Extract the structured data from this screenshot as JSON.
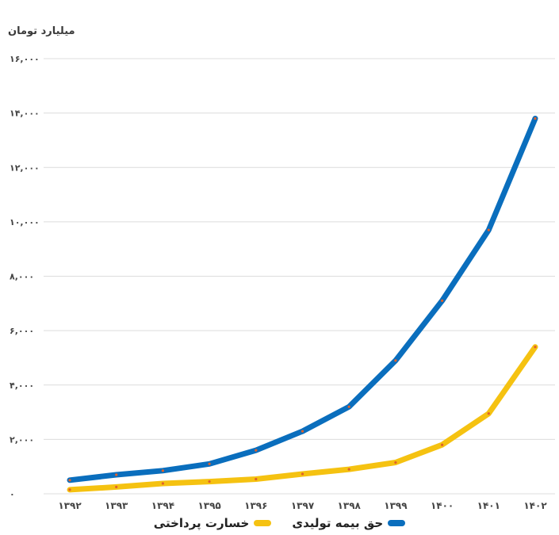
{
  "chart_data": {
    "type": "line",
    "unit_label": "میلیارد تومان",
    "categories": [
      "۱۳۹۲",
      "۱۳۹۳",
      "۱۳۹۴",
      "۱۳۹۵",
      "۱۳۹۶",
      "۱۳۹۷",
      "۱۳۹۸",
      "۱۳۹۹",
      "۱۴۰۰",
      "۱۴۰۱",
      "۱۴۰۲"
    ],
    "yticks": [
      0,
      2000,
      4000,
      6000,
      8000,
      10000,
      12000,
      14000,
      16000
    ],
    "ytick_labels": [
      "۰",
      "۲,۰۰۰",
      "۴,۰۰۰",
      "۶,۰۰۰",
      "۸,۰۰۰",
      "۱۰,۰۰۰",
      "۱۲,۰۰۰",
      "۱۴,۰۰۰",
      "۱۶,۰۰۰"
    ],
    "ylim": [
      0,
      16000
    ],
    "grid": true,
    "legend_position": "bottom",
    "series": [
      {
        "name": "حق بیمه تولیدی",
        "color": "#0a6ebd",
        "values": [
          500,
          700,
          850,
          1100,
          1600,
          2300,
          3200,
          4900,
          7100,
          9700,
          13800
        ]
      },
      {
        "name": "خسارت پرداختی",
        "color": "#f5c211",
        "values": [
          150,
          250,
          380,
          450,
          540,
          730,
          900,
          1150,
          1800,
          2950,
          5400
        ]
      }
    ]
  }
}
